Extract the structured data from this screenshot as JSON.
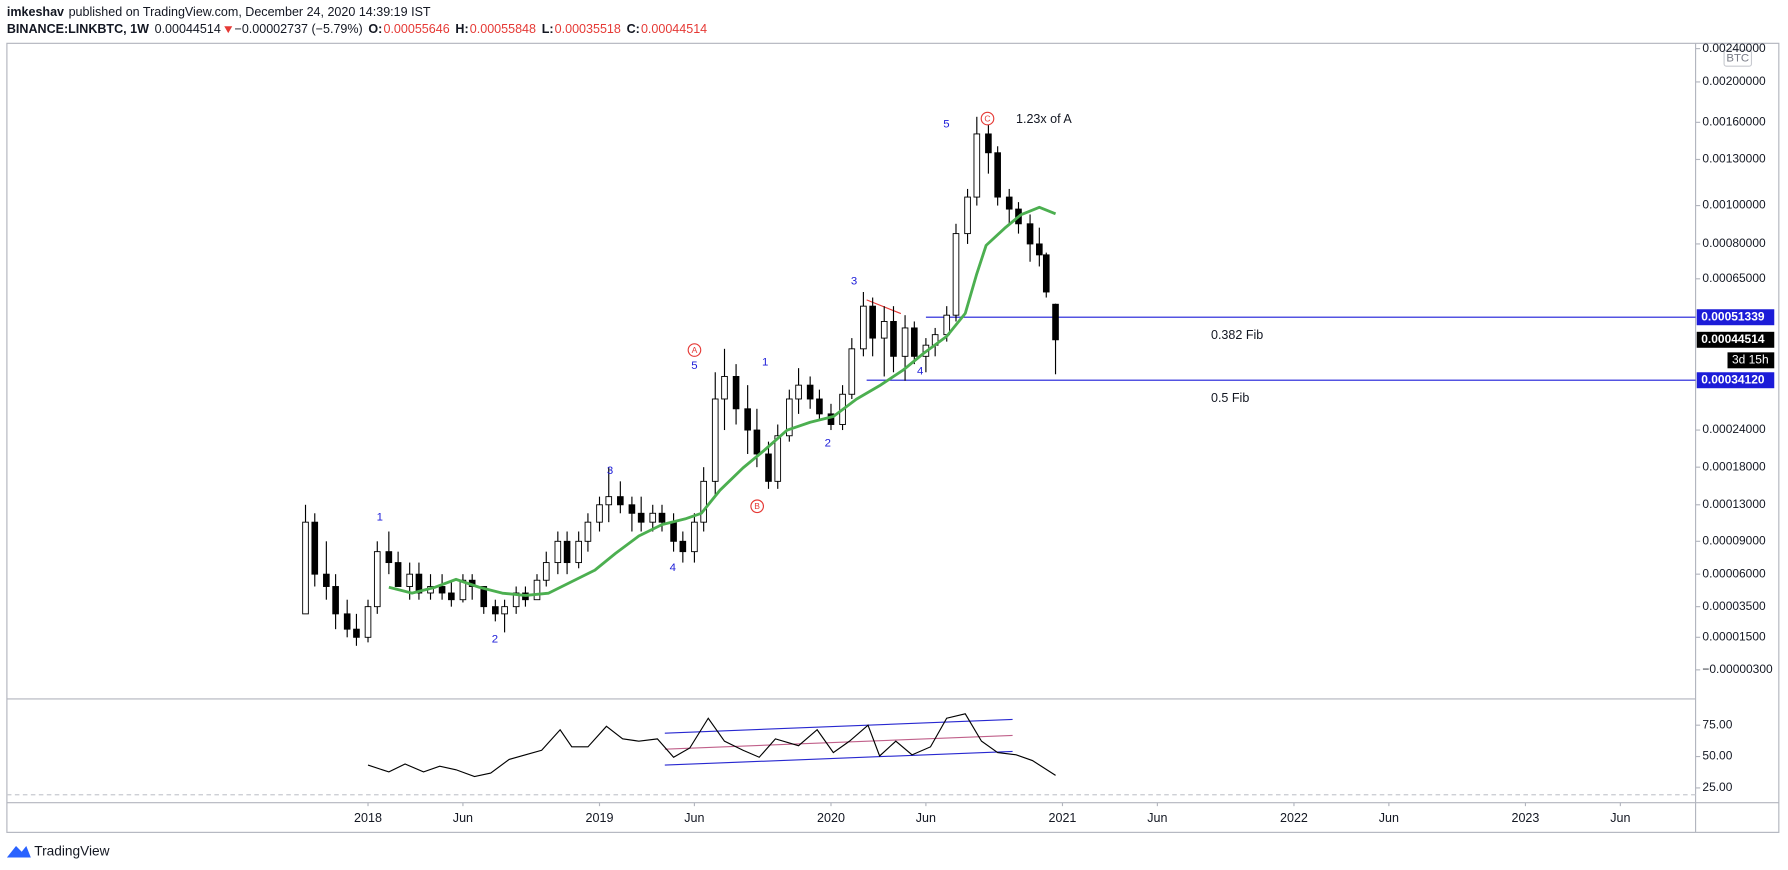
{
  "header": {
    "author": "imkeshav",
    "published": "published on TradingView.com, December 24, 2020 14:39:19 IST",
    "symbol": "BINANCE:LINKBTC, 1W",
    "change": "−0.00002737 (−5.79%)",
    "open_label": "O:",
    "high_label": "H:",
    "low_label": "L:",
    "close_label": "C:"
  },
  "chart_data": {
    "type": "candlestick",
    "currency": "BTC",
    "countdown": "3d 15h",
    "log_scale": true,
    "up_color": "#ffffff",
    "down_color": "#000000",
    "wick_color": "#000000",
    "x": [
      2017.73,
      2017.77,
      2017.82,
      2017.86,
      2017.91,
      2017.95,
      2018.0,
      2018.04,
      2018.09,
      2018.13,
      2018.18,
      2018.22,
      2018.27,
      2018.32,
      2018.36,
      2018.41,
      2018.45,
      2018.5,
      2018.55,
      2018.59,
      2018.64,
      2018.68,
      2018.73,
      2018.77,
      2018.82,
      2018.86,
      2018.91,
      2018.95,
      2019.0,
      2019.04,
      2019.09,
      2019.14,
      2019.18,
      2019.23,
      2019.27,
      2019.32,
      2019.36,
      2019.41,
      2019.45,
      2019.5,
      2019.54,
      2019.59,
      2019.64,
      2019.68,
      2019.73,
      2019.77,
      2019.82,
      2019.86,
      2019.91,
      2019.95,
      2020.0,
      2020.05,
      2020.09,
      2020.14,
      2020.18,
      2020.23,
      2020.27,
      2020.32,
      2020.36,
      2020.41,
      2020.45,
      2020.5,
      2020.54,
      2020.59,
      2020.63,
      2020.68,
      2020.72,
      2020.77,
      2020.81,
      2020.86,
      2020.9,
      2020.93,
      2020.97
    ],
    "open": [
      3e-05,
      0.00011,
      6e-05,
      5e-05,
      3e-05,
      2e-05,
      1.5e-05,
      3.5e-05,
      8e-05,
      7e-05,
      5e-05,
      6e-05,
      4.5e-05,
      5e-05,
      4.5e-05,
      4e-05,
      5.5e-05,
      5e-05,
      3.5e-05,
      3e-05,
      3.5e-05,
      4.5e-05,
      4e-05,
      5.5e-05,
      7e-05,
      9e-05,
      7e-05,
      9e-05,
      0.00011,
      0.00013,
      0.00014,
      0.00013,
      0.00012,
      0.00011,
      0.00012,
      0.00011,
      9e-05,
      8e-05,
      0.00011,
      0.00016,
      0.0003,
      0.00035,
      0.00028,
      0.00024,
      0.0002,
      0.00016,
      0.00023,
      0.0003,
      0.00033,
      0.0003,
      0.00027,
      0.00025,
      0.00031,
      0.00042,
      0.00055,
      0.00045,
      0.0005,
      0.0004,
      0.00048,
      0.0004,
      0.00043,
      0.00046,
      0.00052,
      0.00085,
      0.00105,
      0.0015,
      0.00135,
      0.00105,
      0.00098,
      0.0009,
      0.0008,
      0.00075,
      0.00055646
    ],
    "high": [
      0.00013,
      0.00012,
      9e-05,
      6e-05,
      4e-05,
      3e-05,
      4e-05,
      9e-05,
      0.0001,
      8e-05,
      7e-05,
      7e-05,
      6e-05,
      6e-05,
      5.5e-05,
      6e-05,
      6e-05,
      5e-05,
      4e-05,
      4e-05,
      5e-05,
      5e-05,
      6e-05,
      8e-05,
      0.0001,
      0.0001,
      0.0001,
      0.00012,
      0.00014,
      0.00018,
      0.00016,
      0.00014,
      0.00014,
      0.00013,
      0.00013,
      0.00012,
      0.0001,
      0.00012,
      0.00018,
      0.00036,
      0.00042,
      0.00038,
      0.00033,
      0.00028,
      0.00022,
      0.00025,
      0.00032,
      0.00037,
      0.00035,
      0.00032,
      0.00029,
      0.00033,
      0.00045,
      0.0006,
      0.00058,
      0.00055,
      0.00055,
      0.00052,
      0.0005,
      0.00045,
      0.00048,
      0.00055,
      0.0009,
      0.0011,
      0.00165,
      0.00168,
      0.0014,
      0.0011,
      0.00102,
      0.00095,
      0.00088,
      0.00076,
      0.00055848
    ],
    "low": [
      3e-05,
      5e-05,
      4e-05,
      2e-05,
      1.5e-05,
      1e-05,
      1.2e-05,
      3e-05,
      6e-05,
      5e-05,
      4e-05,
      4e-05,
      4e-05,
      4e-05,
      3.5e-05,
      3.8e-05,
      4e-05,
      3e-05,
      2.5e-05,
      1.8e-05,
      3e-05,
      3.5e-05,
      4e-05,
      5e-05,
      6e-05,
      6e-05,
      6.5e-05,
      8e-05,
      0.0001,
      0.00011,
      0.00012,
      0.0001,
      0.0001,
      0.0001,
      0.0001,
      8e-05,
      7e-05,
      7e-05,
      0.0001,
      0.00014,
      0.00024,
      0.00025,
      0.0002,
      0.00018,
      0.00015,
      0.00015,
      0.00022,
      0.00027,
      0.00028,
      0.00026,
      0.00024,
      0.00024,
      0.0003,
      0.0004,
      0.0004,
      0.00035,
      0.00036,
      0.00034,
      0.00038,
      0.00036,
      0.0004,
      0.00044,
      0.0005,
      0.0008,
      0.001,
      0.0012,
      0.001,
      0.0009,
      0.00085,
      0.00072,
      0.0007,
      0.00058,
      0.00035518
    ],
    "close": [
      0.00011,
      6e-05,
      5e-05,
      3e-05,
      2e-05,
      1.5e-05,
      3.5e-05,
      8e-05,
      7e-05,
      5e-05,
      6e-05,
      4.5e-05,
      5e-05,
      4.5e-05,
      4e-05,
      5.5e-05,
      5e-05,
      3.5e-05,
      3e-05,
      3.5e-05,
      4.5e-05,
      4e-05,
      5.5e-05,
      7e-05,
      9e-05,
      7e-05,
      9e-05,
      0.00011,
      0.00013,
      0.00014,
      0.00013,
      0.00012,
      0.00011,
      0.00012,
      0.00011,
      9e-05,
      8e-05,
      0.00011,
      0.00016,
      0.0003,
      0.00035,
      0.00028,
      0.00024,
      0.0002,
      0.00016,
      0.00023,
      0.0003,
      0.00033,
      0.0003,
      0.00027,
      0.00025,
      0.00031,
      0.00042,
      0.00055,
      0.00045,
      0.0005,
      0.0004,
      0.00048,
      0.0004,
      0.00043,
      0.00046,
      0.00052,
      0.00085,
      0.00105,
      0.0015,
      0.00135,
      0.00105,
      0.00098,
      0.0009,
      0.0008,
      0.00075,
      0.0006,
      0.00044514
    ],
    "xlim": [
      2016.44,
      2023.735
    ],
    "xticks": [
      {
        "value": 2018,
        "label": "2018"
      },
      {
        "value": 2018.41,
        "label": "Jun"
      },
      {
        "value": 2019,
        "label": "2019"
      },
      {
        "value": 2019.41,
        "label": "Jun"
      },
      {
        "value": 2020,
        "label": "2020"
      },
      {
        "value": 2020.41,
        "label": "Jun"
      },
      {
        "value": 2021,
        "label": "2021"
      },
      {
        "value": 2021.41,
        "label": "Jun"
      },
      {
        "value": 2022,
        "label": "2022"
      },
      {
        "value": 2022.41,
        "label": "Jun"
      },
      {
        "value": 2023,
        "label": "2023"
      },
      {
        "value": 2023.41,
        "label": "Jun"
      }
    ],
    "ylim": [
      -1.67e-05,
      0.00247
    ],
    "yticks": [
      {
        "value": 0.0024,
        "label": "0.00240000"
      },
      {
        "value": 0.002,
        "label": "0.00200000"
      },
      {
        "value": 0.0016,
        "label": "0.00160000"
      },
      {
        "value": 0.0013,
        "label": "0.00130000"
      },
      {
        "value": 0.001,
        "label": "0.00100000"
      },
      {
        "value": 0.0008,
        "label": "0.00080000"
      },
      {
        "value": 0.00065,
        "label": "0.00065000"
      },
      {
        "value": 0.00024,
        "label": "0.00024000"
      },
      {
        "value": 0.00018,
        "label": "0.00018000"
      },
      {
        "value": 0.00013,
        "label": "0.00013000"
      },
      {
        "value": 9e-05,
        "label": "0.00009000"
      },
      {
        "value": 6e-05,
        "label": "0.00006000"
      },
      {
        "value": 3.5e-05,
        "label": "0.00003500"
      },
      {
        "value": 1.5e-05,
        "label": "0.00001500"
      },
      {
        "value": -3e-06,
        "label": "−0.00000300"
      }
    ],
    "price_levels": [
      {
        "name": "0.382 Fib",
        "value": 0.00051339,
        "label": "0.00051339",
        "color": "#1c1cd8"
      },
      {
        "name": "0.5 Fib",
        "value": 0.0003412,
        "label": "0.00034120",
        "color": "#1c1cd8"
      }
    ],
    "ma": {
      "color": "#4caf50",
      "x": [
        2018.09,
        2018.19,
        2018.29,
        2018.38,
        2018.48,
        2018.58,
        2018.68,
        2018.78,
        2018.88,
        2018.98,
        2019.07,
        2019.17,
        2019.27,
        2019.37,
        2019.44,
        2019.52,
        2019.62,
        2019.71,
        2019.81,
        2019.91,
        2020.01,
        2020.11,
        2020.21,
        2020.31,
        2020.4,
        2020.5,
        2020.58,
        2020.63,
        2020.67,
        2020.75,
        2020.82,
        2020.9,
        2020.97
      ],
      "values": [
        4.94e-05,
        4.49e-05,
        4.94e-05,
        5.57e-05,
        4.94e-05,
        4.49e-05,
        4.32e-05,
        4.49e-05,
        5.39e-05,
        6.34e-05,
        7.85e-05,
        9.53e-05,
        0.0001073,
        0.0001136,
        0.00012,
        0.0001481,
        0.000179,
        0.0002054,
        0.0002397,
        0.0002543,
        0.000265,
        0.0002997,
        0.000329,
        0.0003645,
        0.0004078,
        0.0004551,
        0.000526,
        0.00067,
        0.000793,
        0.000877,
        0.000948,
        0.00099,
        0.000954
      ]
    },
    "rsi": {
      "type": "line",
      "color": "#000000",
      "x": [
        2018.0,
        2018.09,
        2018.16,
        2018.24,
        2018.31,
        2018.38,
        2018.46,
        2018.53,
        2018.61,
        2018.68,
        2018.75,
        2018.83,
        2018.88,
        2018.95,
        2019.03,
        2019.1,
        2019.17,
        2019.25,
        2019.32,
        2019.39,
        2019.47,
        2019.54,
        2019.62,
        2019.69,
        2019.76,
        2019.86,
        2019.94,
        2020.01,
        2020.08,
        2020.16,
        2020.21,
        2020.28,
        2020.35,
        2020.43,
        2020.5,
        2020.58,
        2020.65,
        2020.72,
        2020.8,
        2020.87,
        2020.97
      ],
      "values": [
        43.2,
        37.7,
        44.1,
        37.7,
        42.3,
        39.5,
        34.1,
        36.8,
        47.7,
        51.4,
        55.0,
        71.4,
        57.7,
        57.7,
        74.1,
        64.1,
        62.3,
        64.1,
        49.5,
        56.8,
        80.5,
        62.3,
        55.0,
        49.5,
        64.1,
        58.6,
        71.4,
        53.2,
        62.3,
        75.0,
        50.5,
        62.3,
        51.4,
        57.7,
        80.5,
        84.1,
        62.3,
        53.2,
        51.4,
        46.8,
        35.0
      ],
      "ylim": [
        13.2,
        95.9
      ],
      "yticks": [
        {
          "value": 75,
          "label": "75.00"
        },
        {
          "value": 50,
          "label": "50.00"
        },
        {
          "value": 25,
          "label": "25.00"
        }
      ]
    },
    "wave_labels": [
      "1",
      "2",
      "3",
      "4",
      "5",
      "1",
      "2",
      "3",
      "4",
      "5"
    ],
    "corrective_labels": [
      "A",
      "B",
      "C"
    ],
    "note": "1.23x of A"
  },
  "footer": {
    "brand": "TradingView"
  }
}
